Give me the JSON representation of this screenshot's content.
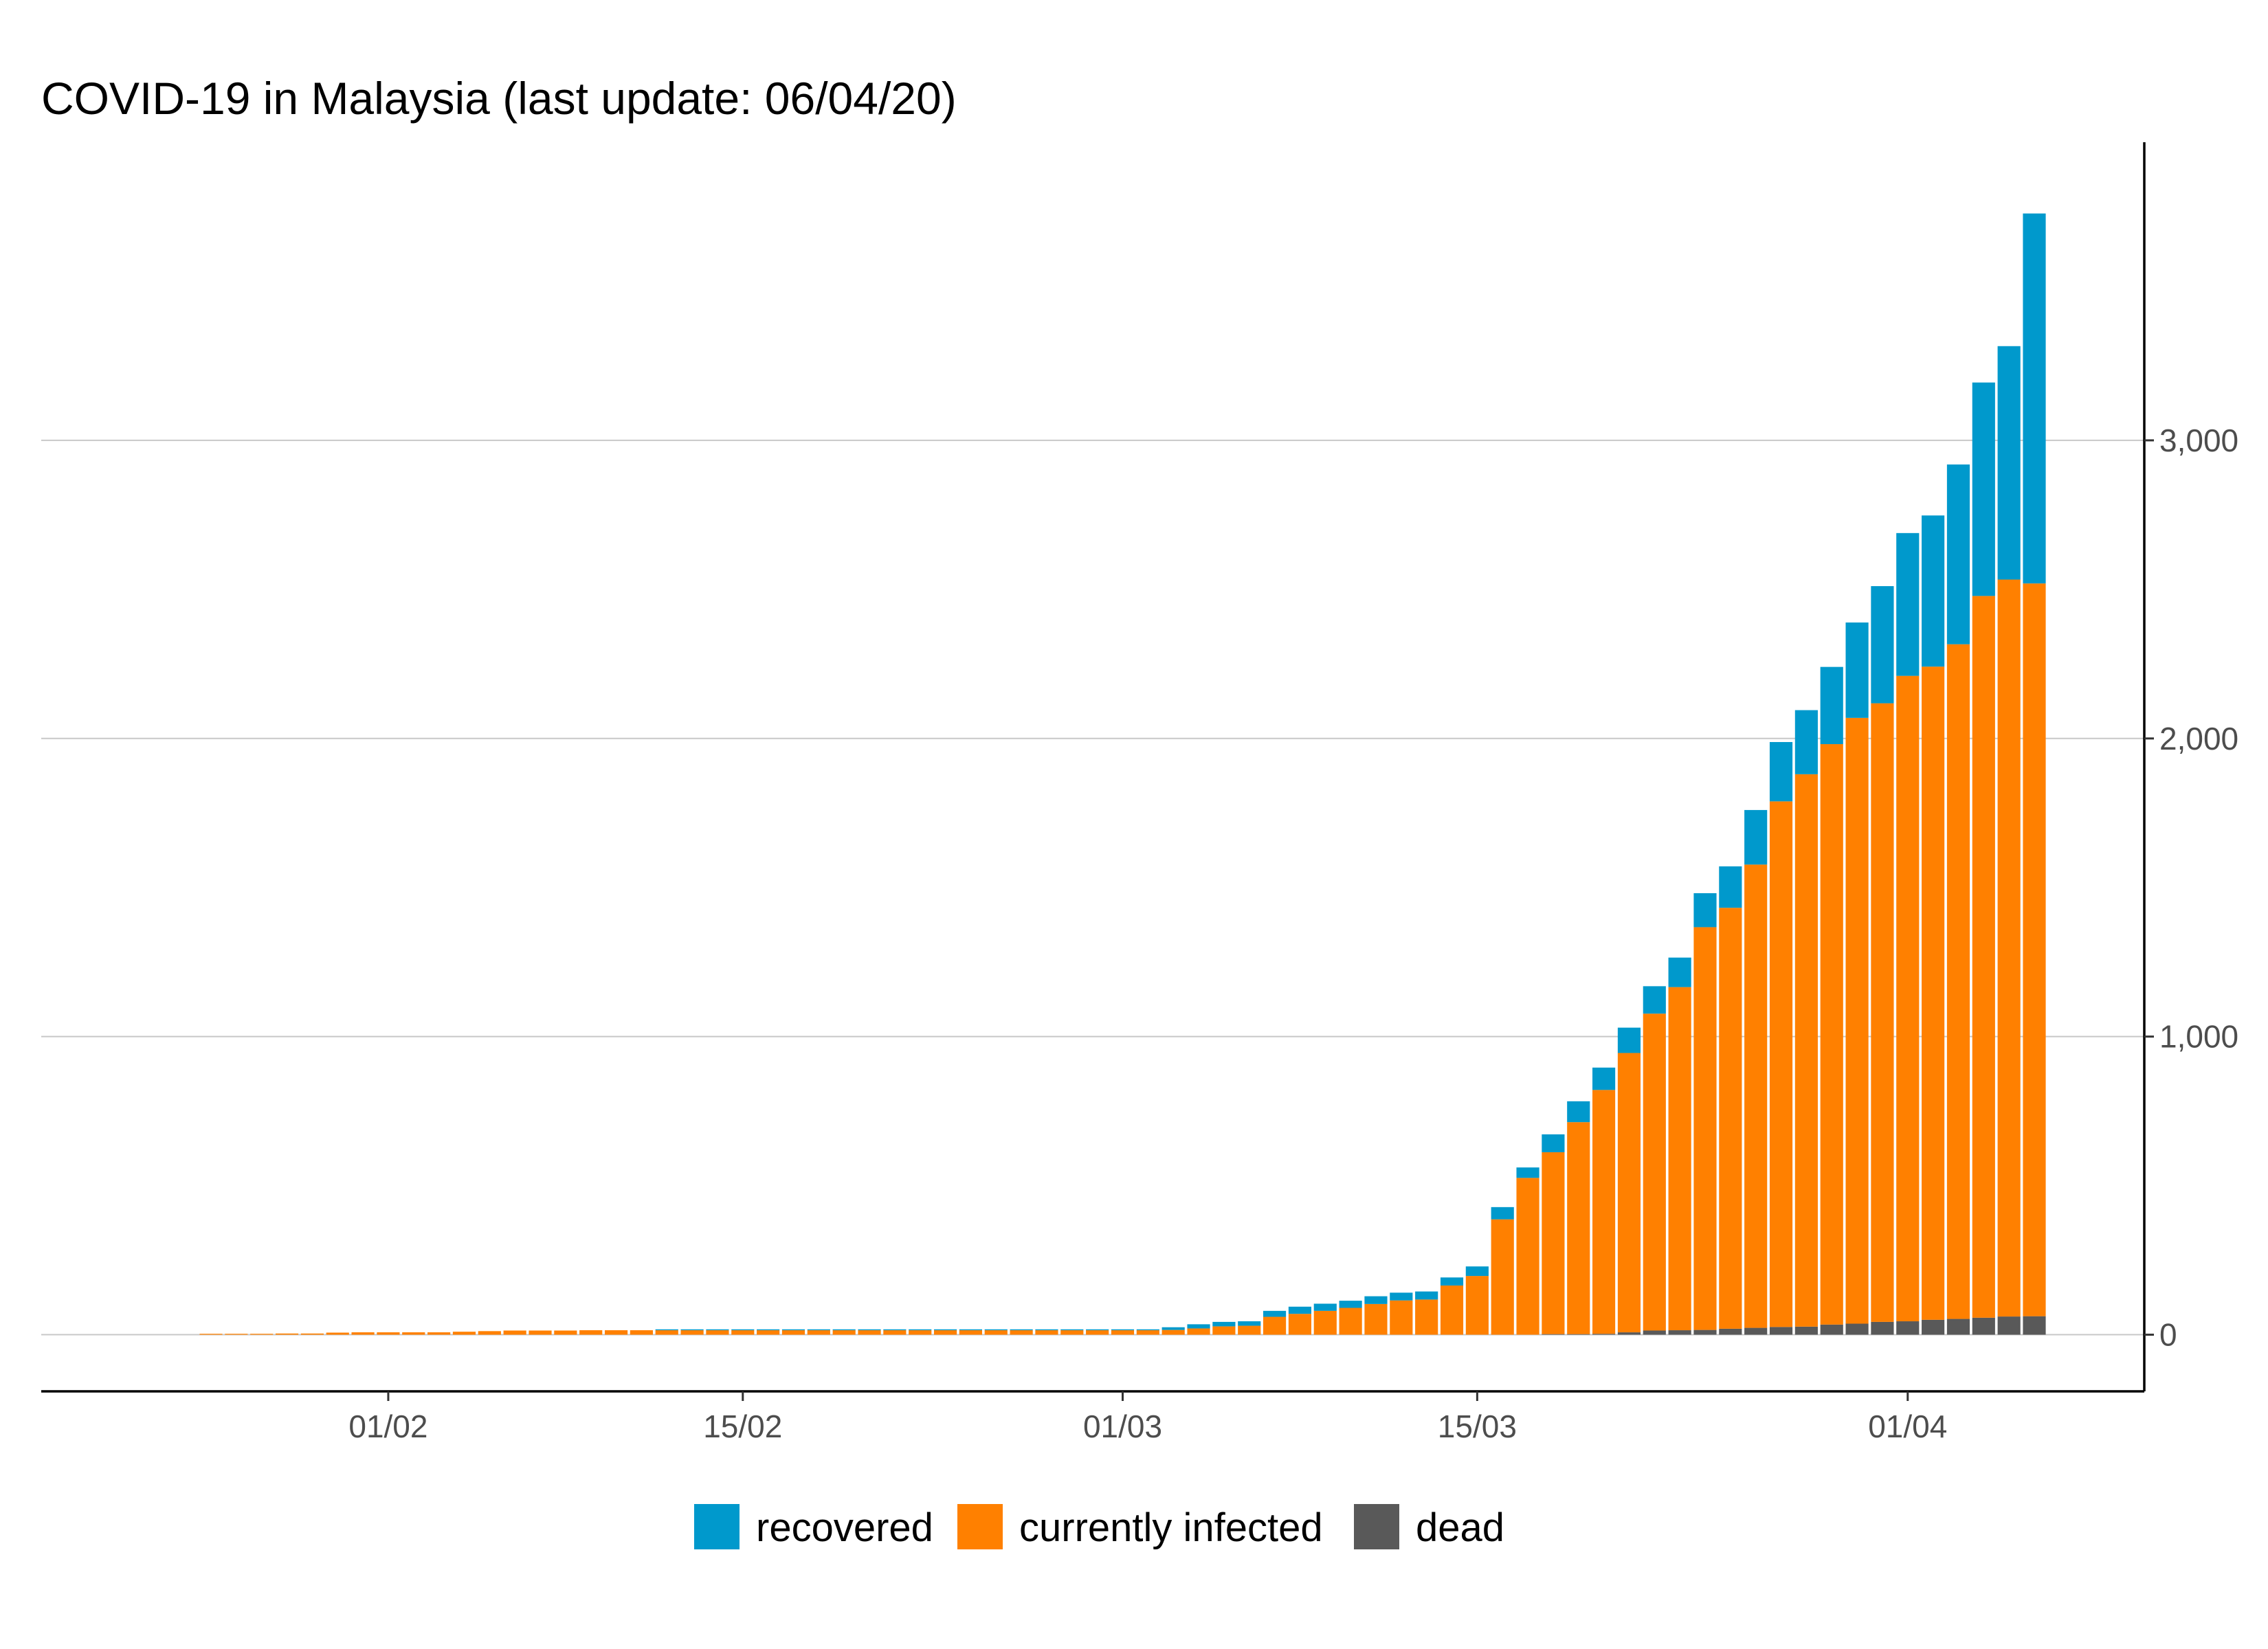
{
  "chart_data": {
    "type": "bar",
    "stacked": true,
    "title": "COVID-19 in Malaysia (last update: 06/04/20)",
    "xlabel": "",
    "ylabel": "",
    "x_tick_labels": [
      "01/02",
      "15/02",
      "01/03",
      "15/03",
      "01/04"
    ],
    "y_tick_labels": [
      "0",
      "1,000",
      "2,000",
      "3,000"
    ],
    "y_ticks": [
      0,
      1000,
      2000,
      3000
    ],
    "ylim": [
      -190,
      4000
    ],
    "y_axis_side": "right",
    "grid": "horizontal major",
    "legend_position": "bottom",
    "x_start": "2020-01-25",
    "x_end": "2020-04-06",
    "dates": [
      "25/01",
      "26/01",
      "27/01",
      "28/01",
      "29/01",
      "30/01",
      "31/01",
      "01/02",
      "02/02",
      "03/02",
      "04/02",
      "05/02",
      "06/02",
      "07/02",
      "08/02",
      "09/02",
      "10/02",
      "11/02",
      "12/02",
      "13/02",
      "14/02",
      "15/02",
      "16/02",
      "17/02",
      "18/02",
      "19/02",
      "20/02",
      "21/02",
      "22/02",
      "23/02",
      "24/02",
      "25/02",
      "26/02",
      "27/02",
      "28/02",
      "29/02",
      "01/03",
      "02/03",
      "03/03",
      "04/03",
      "05/03",
      "06/03",
      "07/03",
      "08/03",
      "09/03",
      "10/03",
      "11/03",
      "12/03",
      "13/03",
      "14/03",
      "15/03",
      "16/03",
      "17/03",
      "18/03",
      "19/03",
      "20/03",
      "21/03",
      "22/03",
      "23/03",
      "24/03",
      "25/03",
      "26/03",
      "27/03",
      "28/03",
      "29/03",
      "30/03",
      "31/03",
      "01/04",
      "02/04",
      "03/04",
      "04/04",
      "05/04",
      "06/04"
    ],
    "series": [
      {
        "name": "dead",
        "color": "#595959",
        "values": [
          0,
          0,
          0,
          0,
          0,
          0,
          0,
          0,
          0,
          0,
          0,
          0,
          0,
          0,
          0,
          0,
          0,
          0,
          0,
          0,
          0,
          0,
          0,
          0,
          0,
          0,
          0,
          0,
          0,
          0,
          0,
          0,
          0,
          0,
          0,
          0,
          0,
          0,
          0,
          0,
          0,
          0,
          0,
          0,
          0,
          0,
          0,
          0,
          0,
          0,
          0,
          0,
          0,
          2,
          2,
          3,
          8,
          14,
          15,
          16,
          20,
          23,
          26,
          27,
          34,
          37,
          43,
          45,
          50,
          53,
          57,
          61,
          62
        ]
      },
      {
        "name": "currently infected",
        "color": "#ff8000",
        "values": [
          3,
          3,
          3,
          4,
          4,
          7,
          8,
          8,
          8,
          8,
          10,
          12,
          14,
          14,
          14,
          15,
          15,
          15,
          15,
          15,
          15,
          15,
          15,
          15,
          15,
          15,
          15,
          15,
          15,
          15,
          15,
          15,
          15,
          15,
          15,
          15,
          15,
          15,
          16,
          21,
          28,
          30,
          60,
          70,
          80,
          90,
          103,
          115,
          118,
          165,
          197,
          387,
          526,
          610,
          711,
          818,
          937,
          1063,
          1151,
          1351,
          1412,
          1554,
          1763,
          1853,
          1947,
          2032,
          2075,
          2165,
          2191,
          2263,
          2421,
          2472,
          2458
        ]
      },
      {
        "name": "recovered",
        "color": "#0099cc",
        "values": [
          0,
          0,
          0,
          0,
          0,
          0,
          0,
          0,
          0,
          0,
          0,
          0,
          0,
          0,
          0,
          0,
          0,
          0,
          3,
          3,
          3,
          3,
          3,
          3,
          3,
          3,
          3,
          3,
          3,
          3,
          3,
          3,
          3,
          3,
          3,
          3,
          3,
          3,
          9,
          14,
          15,
          15,
          20,
          24,
          24,
          24,
          26,
          26,
          27,
          27,
          32,
          41,
          35,
          60,
          70,
          75,
          85,
          92,
          99,
          114,
          139,
          183,
          199,
          215,
          259,
          320,
          393,
          479,
          507,
          603,
          716,
          783,
          1241
        ]
      }
    ]
  },
  "legend": {
    "items": [
      {
        "label": "recovered",
        "color": "#0099cc"
      },
      {
        "label": "currently infected",
        "color": "#ff8000"
      },
      {
        "label": "dead",
        "color": "#595959"
      }
    ]
  }
}
